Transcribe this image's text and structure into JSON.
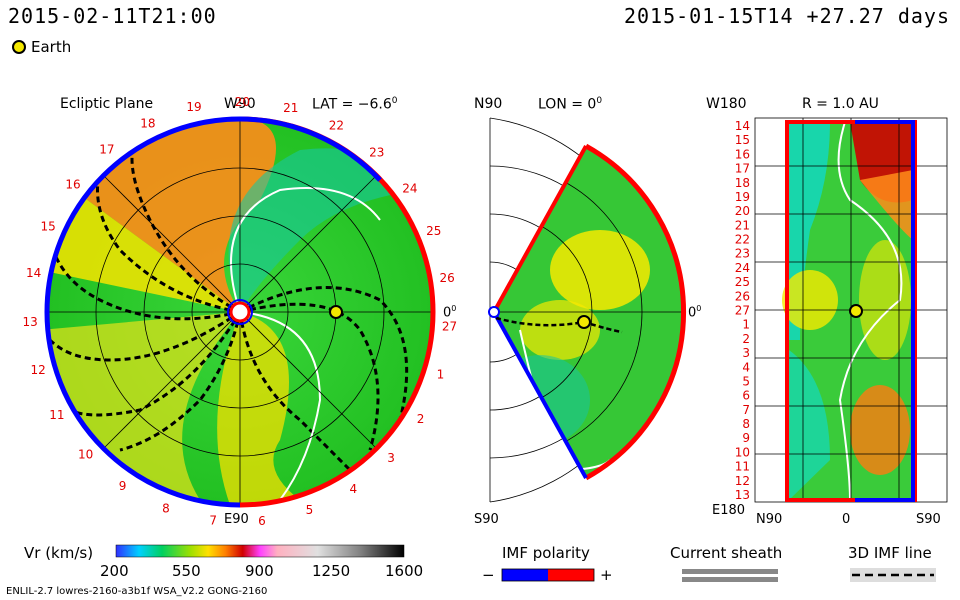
{
  "header": {
    "left_time": "2015-02-11T21:00",
    "right_time": "2015-01-15T14 +27.27 days"
  },
  "legend_earth": "Earth",
  "ecliptic": {
    "title": "Ecliptic Plane",
    "top_label": "W90",
    "bottom_label": "E90",
    "right_label": "0",
    "lat_label": "LAT = −6.6",
    "rotation_ticks": [
      "1",
      "2",
      "3",
      "4",
      "5",
      "6",
      "7",
      "8",
      "9",
      "10",
      "11",
      "12",
      "13",
      "14",
      "15",
      "16",
      "17",
      "18",
      "19",
      "20",
      "21",
      "22",
      "23",
      "24",
      "25",
      "26",
      "27"
    ]
  },
  "meridional": {
    "top_label": "N90",
    "bottom_label": "S90",
    "lon_label": "LON = 0",
    "right_label": "0"
  },
  "synoptic": {
    "title": "R = 1.0 AU",
    "top_left_label": "W180",
    "bottom_left_label": "E180",
    "bottom_labels": [
      "N90",
      "0",
      "S90"
    ],
    "row_ticks": [
      "14",
      "15",
      "16",
      "17",
      "18",
      "19",
      "20",
      "21",
      "22",
      "23",
      "24",
      "25",
      "26",
      "27",
      "1",
      "2",
      "3",
      "4",
      "5",
      "6",
      "7",
      "8",
      "9",
      "10",
      "11",
      "12",
      "13"
    ]
  },
  "colorbar": {
    "label": "Vr (km/s)",
    "ticks": [
      "200",
      "550",
      "900",
      "1250",
      "1600"
    ]
  },
  "imf_polarity": {
    "title": "IMF polarity",
    "minus": "−",
    "plus": "+"
  },
  "current_sheath": {
    "title": "Current sheath"
  },
  "imf_3d": {
    "title": "3D IMF line"
  },
  "credit": "ENLIL-2.7 lowres-2160-a3b1f WSA_V2.2 GONG-2160",
  "colors": {
    "blue": "#0000ff",
    "red": "#ff0000",
    "green": "#2ccb2c",
    "yellow": "#f6f000",
    "orange": "#ff8c00"
  }
}
